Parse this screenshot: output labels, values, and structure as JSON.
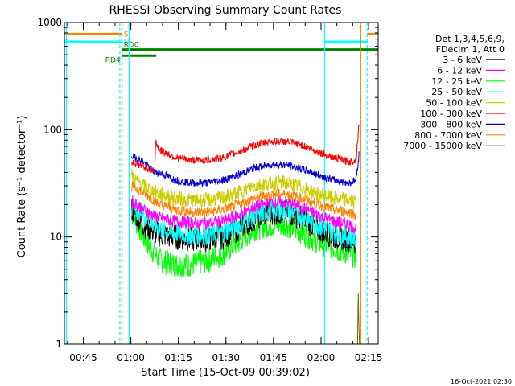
{
  "chart_data": {
    "type": "line",
    "title": "RHESSI Observing Summary Count Rates",
    "xlabel": "Start Time (15-Oct-09 00:39:02)",
    "ylabel": "Count Rate (s⁻¹ detector⁻¹)",
    "x_unit": "minutes after 00:39:02",
    "xlim": [
      0,
      99
    ],
    "ylim": [
      1,
      1000
    ],
    "y_scale": "log",
    "grid": false,
    "legend_position": "right",
    "x_ticks": [
      {
        "label": "00:45",
        "value": 5.97
      },
      {
        "label": "01:00",
        "value": 20.97
      },
      {
        "label": "01:15",
        "value": 35.97
      },
      {
        "label": "01:30",
        "value": 50.97
      },
      {
        "label": "01:45",
        "value": 65.97
      },
      {
        "label": "02:00",
        "value": 80.97
      },
      {
        "label": "02:15",
        "value": 95.97
      }
    ],
    "y_ticks": [
      {
        "label": "1",
        "value": 1
      },
      {
        "label": "10",
        "value": 10
      },
      {
        "label": "100",
        "value": 100
      },
      {
        "label": "1000",
        "value": 1000
      }
    ],
    "legend_header": [
      "Det 1,3,4,5,6,9,",
      "FDecim 1, Att 0"
    ],
    "legend": [
      {
        "label": "3 - 6 keV",
        "color": "#000000"
      },
      {
        "label": "6 - 12 keV",
        "color": "#ff00ff"
      },
      {
        "label": "12 - 25 keV",
        "color": "#00ff00"
      },
      {
        "label": "25 - 50 keV",
        "color": "#00ffff"
      },
      {
        "label": "50 - 100 keV",
        "color": "#cccc00"
      },
      {
        "label": "100 - 300 keV",
        "color": "#ff0000"
      },
      {
        "label": "300 - 800 keV",
        "color": "#0000cc"
      },
      {
        "label": "800 - 7000 keV",
        "color": "#ff8000"
      },
      {
        "label": "7000 - 15000 keV",
        "color": "#806000"
      }
    ],
    "series": [
      {
        "name": "3 - 6 keV",
        "color": "#000000",
        "values": [
          [
            21.2,
            18
          ],
          [
            25,
            13
          ],
          [
            30,
            10.5
          ],
          [
            35,
            10
          ],
          [
            40,
            9.5
          ],
          [
            45,
            9.5
          ],
          [
            50,
            10
          ],
          [
            55,
            12
          ],
          [
            60,
            15
          ],
          [
            65,
            17
          ],
          [
            70,
            17
          ],
          [
            75,
            15
          ],
          [
            80,
            12
          ],
          [
            85,
            10
          ],
          [
            90,
            9.5
          ],
          [
            92,
            9
          ]
        ],
        "noise": 0.12
      },
      {
        "name": "6 - 12 keV",
        "color": "#ff00ff",
        "values": [
          [
            21.2,
            22
          ],
          [
            25,
            18
          ],
          [
            30,
            15
          ],
          [
            35,
            14
          ],
          [
            40,
            13.5
          ],
          [
            45,
            13.5
          ],
          [
            50,
            14
          ],
          [
            55,
            16
          ],
          [
            60,
            19
          ],
          [
            65,
            21
          ],
          [
            70,
            21
          ],
          [
            75,
            19
          ],
          [
            80,
            16
          ],
          [
            85,
            14
          ],
          [
            90,
            13
          ],
          [
            92,
            12
          ]
        ],
        "noise": 0.06
      },
      {
        "name": "12 - 25 keV",
        "color": "#00ff00",
        "values": [
          [
            21.2,
            17
          ],
          [
            25,
            10
          ],
          [
            30,
            6
          ],
          [
            35,
            5.5
          ],
          [
            40,
            5.5
          ],
          [
            45,
            6
          ],
          [
            50,
            7
          ],
          [
            55,
            9
          ],
          [
            60,
            12
          ],
          [
            65,
            13
          ],
          [
            70,
            13
          ],
          [
            75,
            11
          ],
          [
            80,
            9
          ],
          [
            85,
            8
          ],
          [
            90,
            7
          ],
          [
            92,
            6.5
          ]
        ],
        "noise": 0.12
      },
      {
        "name": "25 - 50 keV",
        "color": "#00ffff",
        "values": [
          [
            21.2,
            20
          ],
          [
            25,
            16
          ],
          [
            30,
            12
          ],
          [
            35,
            11
          ],
          [
            40,
            10.5
          ],
          [
            45,
            10.5
          ],
          [
            50,
            11
          ],
          [
            55,
            13
          ],
          [
            60,
            16
          ],
          [
            65,
            18
          ],
          [
            70,
            18
          ],
          [
            75,
            16
          ],
          [
            80,
            13
          ],
          [
            85,
            11
          ],
          [
            90,
            10
          ],
          [
            92,
            9.5
          ]
        ],
        "noise": 0.1
      },
      {
        "name": "50 - 100 keV",
        "color": "#cccc00",
        "values": [
          [
            21.2,
            37
          ],
          [
            25,
            30
          ],
          [
            30,
            25
          ],
          [
            35,
            23
          ],
          [
            40,
            22
          ],
          [
            45,
            22
          ],
          [
            50,
            23
          ],
          [
            55,
            26
          ],
          [
            60,
            30
          ],
          [
            65,
            32
          ],
          [
            70,
            32
          ],
          [
            75,
            29
          ],
          [
            80,
            25
          ],
          [
            85,
            23
          ],
          [
            90,
            22
          ],
          [
            92,
            21
          ]
        ],
        "noise": 0.07
      },
      {
        "name": "100 - 300 keV",
        "color": "#ff0000",
        "values": [
          [
            21.2,
            50
          ],
          [
            25,
            45
          ],
          [
            28.5,
            41
          ],
          [
            28.8,
            78
          ],
          [
            30,
            65
          ],
          [
            35,
            55
          ],
          [
            40,
            52
          ],
          [
            45,
            52
          ],
          [
            50,
            55
          ],
          [
            55,
            62
          ],
          [
            60,
            72
          ],
          [
            65,
            78
          ],
          [
            70,
            78
          ],
          [
            75,
            72
          ],
          [
            80,
            62
          ],
          [
            85,
            55
          ],
          [
            90,
            50
          ],
          [
            92,
            52
          ],
          [
            93,
            120
          ]
        ],
        "noise": 0.035
      },
      {
        "name": "300 - 800 keV",
        "color": "#0000cc",
        "values": [
          [
            21.2,
            57
          ],
          [
            25,
            50
          ],
          [
            28.5,
            40
          ],
          [
            30,
            40
          ],
          [
            35,
            34
          ],
          [
            40,
            32
          ],
          [
            45,
            32
          ],
          [
            50,
            34
          ],
          [
            55,
            38
          ],
          [
            60,
            44
          ],
          [
            65,
            47
          ],
          [
            70,
            47
          ],
          [
            75,
            43
          ],
          [
            80,
            38
          ],
          [
            85,
            34
          ],
          [
            90,
            32
          ],
          [
            92,
            34
          ],
          [
            93,
            60
          ]
        ],
        "noise": 0.035
      },
      {
        "name": "800 - 7000 keV",
        "color": "#ff8000",
        "values": [
          [
            21.2,
            30
          ],
          [
            25,
            26
          ],
          [
            30,
            20
          ],
          [
            35,
            18
          ],
          [
            40,
            17
          ],
          [
            45,
            17
          ],
          [
            50,
            18
          ],
          [
            55,
            20
          ],
          [
            60,
            23
          ],
          [
            65,
            25
          ],
          [
            70,
            25
          ],
          [
            75,
            23
          ],
          [
            80,
            20
          ],
          [
            85,
            18
          ],
          [
            90,
            17
          ],
          [
            92,
            16
          ]
        ],
        "noise": 0.05
      },
      {
        "name": "7000 - 15000 keV",
        "color": "#806000",
        "values": [
          [
            92.5,
            1
          ],
          [
            92.7,
            3
          ],
          [
            92.9,
            1.5
          ],
          [
            93.1,
            1
          ]
        ],
        "noise": 0
      }
    ],
    "state_bars": [
      {
        "label": "S",
        "color": "#ff8000",
        "segments": [
          [
            0,
            18.2
          ],
          [
            95.5,
            99
          ]
        ],
        "y": 780
      },
      {
        "label": "N",
        "color": "#00ffff",
        "segments": [
          [
            0,
            18.2
          ],
          [
            82.1,
            95.5
          ]
        ],
        "y": 660
      },
      {
        "label": "RD0",
        "color": "#008000",
        "segments": [
          [
            18.2,
            99
          ]
        ],
        "y": 560
      },
      {
        "label": "RD4",
        "color": "#008000",
        "segments": [
          [
            18.2,
            29
          ]
        ],
        "y": 490
      }
    ],
    "vertical_lines": [
      {
        "x": 0.6,
        "color": "#00ffff",
        "dash": false
      },
      {
        "x": 17.5,
        "color": "#00ffff",
        "dash": true
      },
      {
        "x": 18.2,
        "color": "#ff8000",
        "dash": true
      },
      {
        "x": 20.4,
        "color": "#00ffff",
        "dash": false
      },
      {
        "x": 82.1,
        "color": "#00ffff",
        "dash": false
      },
      {
        "x": 93.5,
        "color": "#ff8000",
        "dash": false
      },
      {
        "x": 95.5,
        "color": "#00ffff",
        "dash": true
      }
    ],
    "footer_stamp": "16-Oct-2021 02:30"
  }
}
